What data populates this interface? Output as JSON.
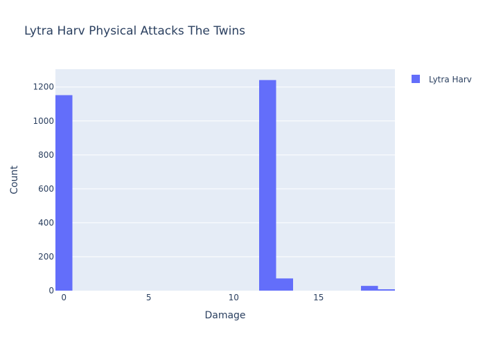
{
  "chart_data": {
    "type": "bar",
    "title": "Lytra Harv Physical Attacks The Twins",
    "xlabel": "Damage",
    "ylabel": "Count",
    "xlim": [
      -0.5,
      19.5
    ],
    "ylim": [
      0,
      1305
    ],
    "x_ticks": [
      0,
      5,
      10,
      15
    ],
    "y_ticks": [
      0,
      200,
      400,
      600,
      800,
      1000,
      1200
    ],
    "bin_width": 1,
    "series": [
      {
        "name": "Lytra Harv",
        "color": "#636efa",
        "bins": [
          {
            "x0": -0.5,
            "x1": 0.5,
            "count": 1152
          },
          {
            "x0": 11.5,
            "x1": 12.5,
            "count": 1241
          },
          {
            "x0": 12.5,
            "x1": 13.5,
            "count": 72
          },
          {
            "x0": 17.5,
            "x1": 18.5,
            "count": 28
          },
          {
            "x0": 18.5,
            "x1": 19.5,
            "count": 8
          }
        ]
      }
    ],
    "grid": true,
    "legend_position": "top-right",
    "colors": {
      "plot_bg": "#e5ecf6",
      "grid": "#ffffff",
      "text": "#2a3f5f"
    }
  }
}
